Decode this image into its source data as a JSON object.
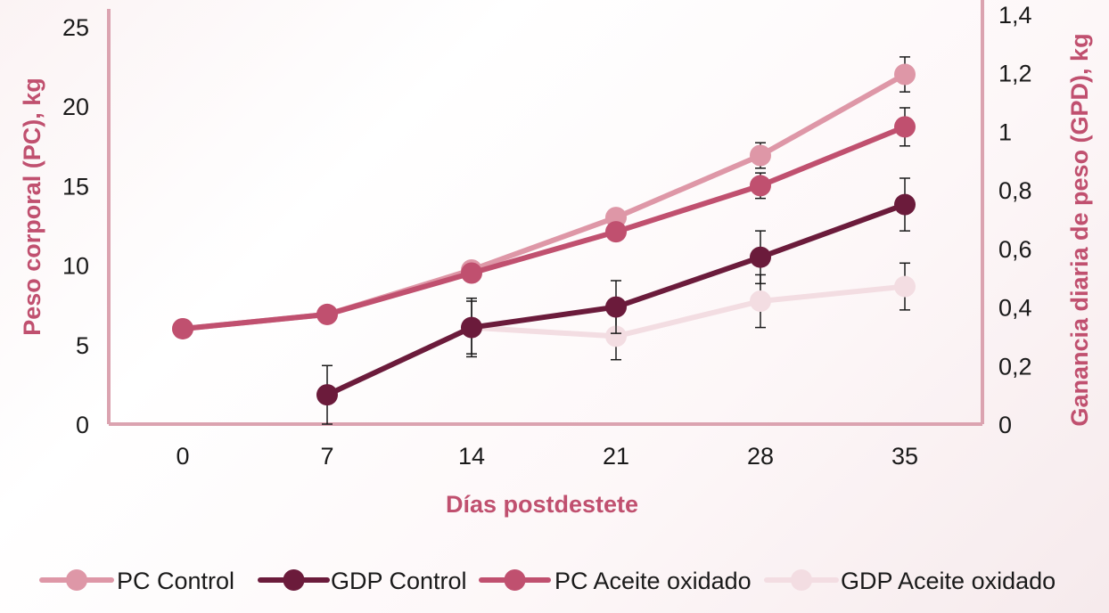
{
  "chart_data": {
    "type": "line",
    "x": [
      0,
      7,
      14,
      21,
      28,
      35
    ],
    "xlabel": "Días postdestete",
    "ylabel_left": "Peso corporal (PC), kg",
    "ylabel_right": "Ganancia diaria de peso (GPD), kg",
    "yticks_left": [
      "0",
      "5",
      "10",
      "15",
      "20",
      "25"
    ],
    "yticks_right": [
      "0",
      "0,2",
      "0,4",
      "0,6",
      "0,8",
      "1",
      "1,2",
      "1,4"
    ],
    "ylim_left": [
      0,
      25
    ],
    "ylim_right": [
      0,
      1.4
    ],
    "xticks": [
      "0",
      "7",
      "14",
      "21",
      "28",
      "35"
    ],
    "legend_position": "bottom",
    "grid": false,
    "series": [
      {
        "name": "PC Control",
        "axis": "left",
        "color": "#de97a7",
        "x": [
          0,
          7,
          14,
          21,
          28,
          35
        ],
        "values": [
          6.0,
          6.9,
          9.7,
          13.0,
          16.9,
          22.0
        ],
        "error": [
          null,
          null,
          null,
          null,
          0.8,
          1.1
        ]
      },
      {
        "name": "GDP Control",
        "axis": "right",
        "color": "#6b1b3b",
        "x": [
          7,
          14,
          21,
          28,
          35
        ],
        "values": [
          0.1,
          0.33,
          0.4,
          0.57,
          0.75
        ],
        "error": [
          0.1,
          0.1,
          0.09,
          0.09,
          0.09
        ]
      },
      {
        "name": "PC Aceite oxidado",
        "axis": "left",
        "color": "#c0506f",
        "x": [
          0,
          7,
          14,
          21,
          28,
          35
        ],
        "values": [
          6.0,
          6.9,
          9.5,
          12.1,
          15.0,
          18.7
        ],
        "error": [
          null,
          null,
          null,
          null,
          0.8,
          1.2
        ]
      },
      {
        "name": "GDP Aceite oxidado",
        "axis": "right",
        "color": "#f3dde2",
        "x": [
          14,
          21,
          28,
          35
        ],
        "values": [
          0.33,
          0.3,
          0.42,
          0.47
        ],
        "error": [
          0.09,
          0.08,
          0.09,
          0.08
        ]
      }
    ]
  }
}
